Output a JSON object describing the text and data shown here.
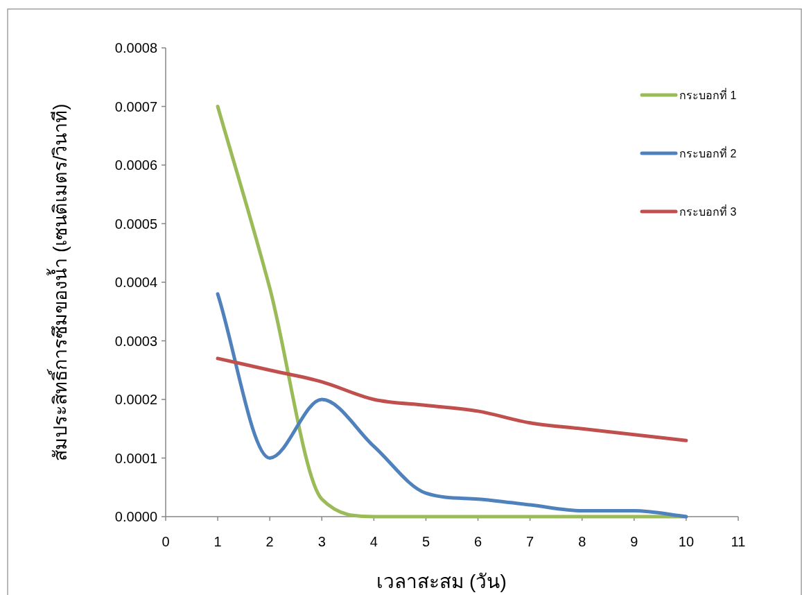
{
  "chart_data": {
    "type": "line",
    "xlabel": "เวลาสะสม (วัน)",
    "ylabel": "สัมประสิทธิ์การซึมของน้ำ (เซนติเมตร/วินาที)",
    "x": [
      1,
      2,
      3,
      4,
      5,
      6,
      7,
      8,
      9,
      10
    ],
    "series": [
      {
        "name": "กระบอกที่ 1",
        "color": "#9bbb59",
        "values": [
          0.0007,
          0.00039,
          3e-05,
          0,
          0,
          0,
          0,
          0,
          0,
          0
        ]
      },
      {
        "name": "กระบอกที่ 2",
        "color": "#4f81bd",
        "values": [
          0.00038,
          0.0001,
          0.0002,
          0.00012,
          4e-05,
          3e-05,
          2e-05,
          1e-05,
          1e-05,
          0
        ]
      },
      {
        "name": "กระบอกที่ 3",
        "color": "#c0504d",
        "values": [
          0.00027,
          0.00025,
          0.00023,
          0.0002,
          0.00019,
          0.00018,
          0.00016,
          0.00015,
          0.00014,
          0.00013
        ]
      }
    ],
    "xlim": [
      0,
      11
    ],
    "xticks": [
      0,
      1,
      2,
      3,
      4,
      5,
      6,
      7,
      8,
      9,
      10,
      11
    ],
    "ylim": [
      0,
      0.0008
    ],
    "yticks": [
      {
        "value": 0,
        "label": "0.0000"
      },
      {
        "value": 0.0001,
        "label": "0.0001"
      },
      {
        "value": 0.0002,
        "label": "0.0002"
      },
      {
        "value": 0.0003,
        "label": "0.0003"
      },
      {
        "value": 0.0004,
        "label": "0.0004"
      },
      {
        "value": 0.0005,
        "label": "0.0005"
      },
      {
        "value": 0.0006,
        "label": "0.0006"
      },
      {
        "value": 0.0007,
        "label": "0.0007"
      },
      {
        "value": 0.0008,
        "label": "0.0008"
      }
    ],
    "legend": "right",
    "grid": false,
    "marker": "none",
    "line_style": "solid"
  }
}
